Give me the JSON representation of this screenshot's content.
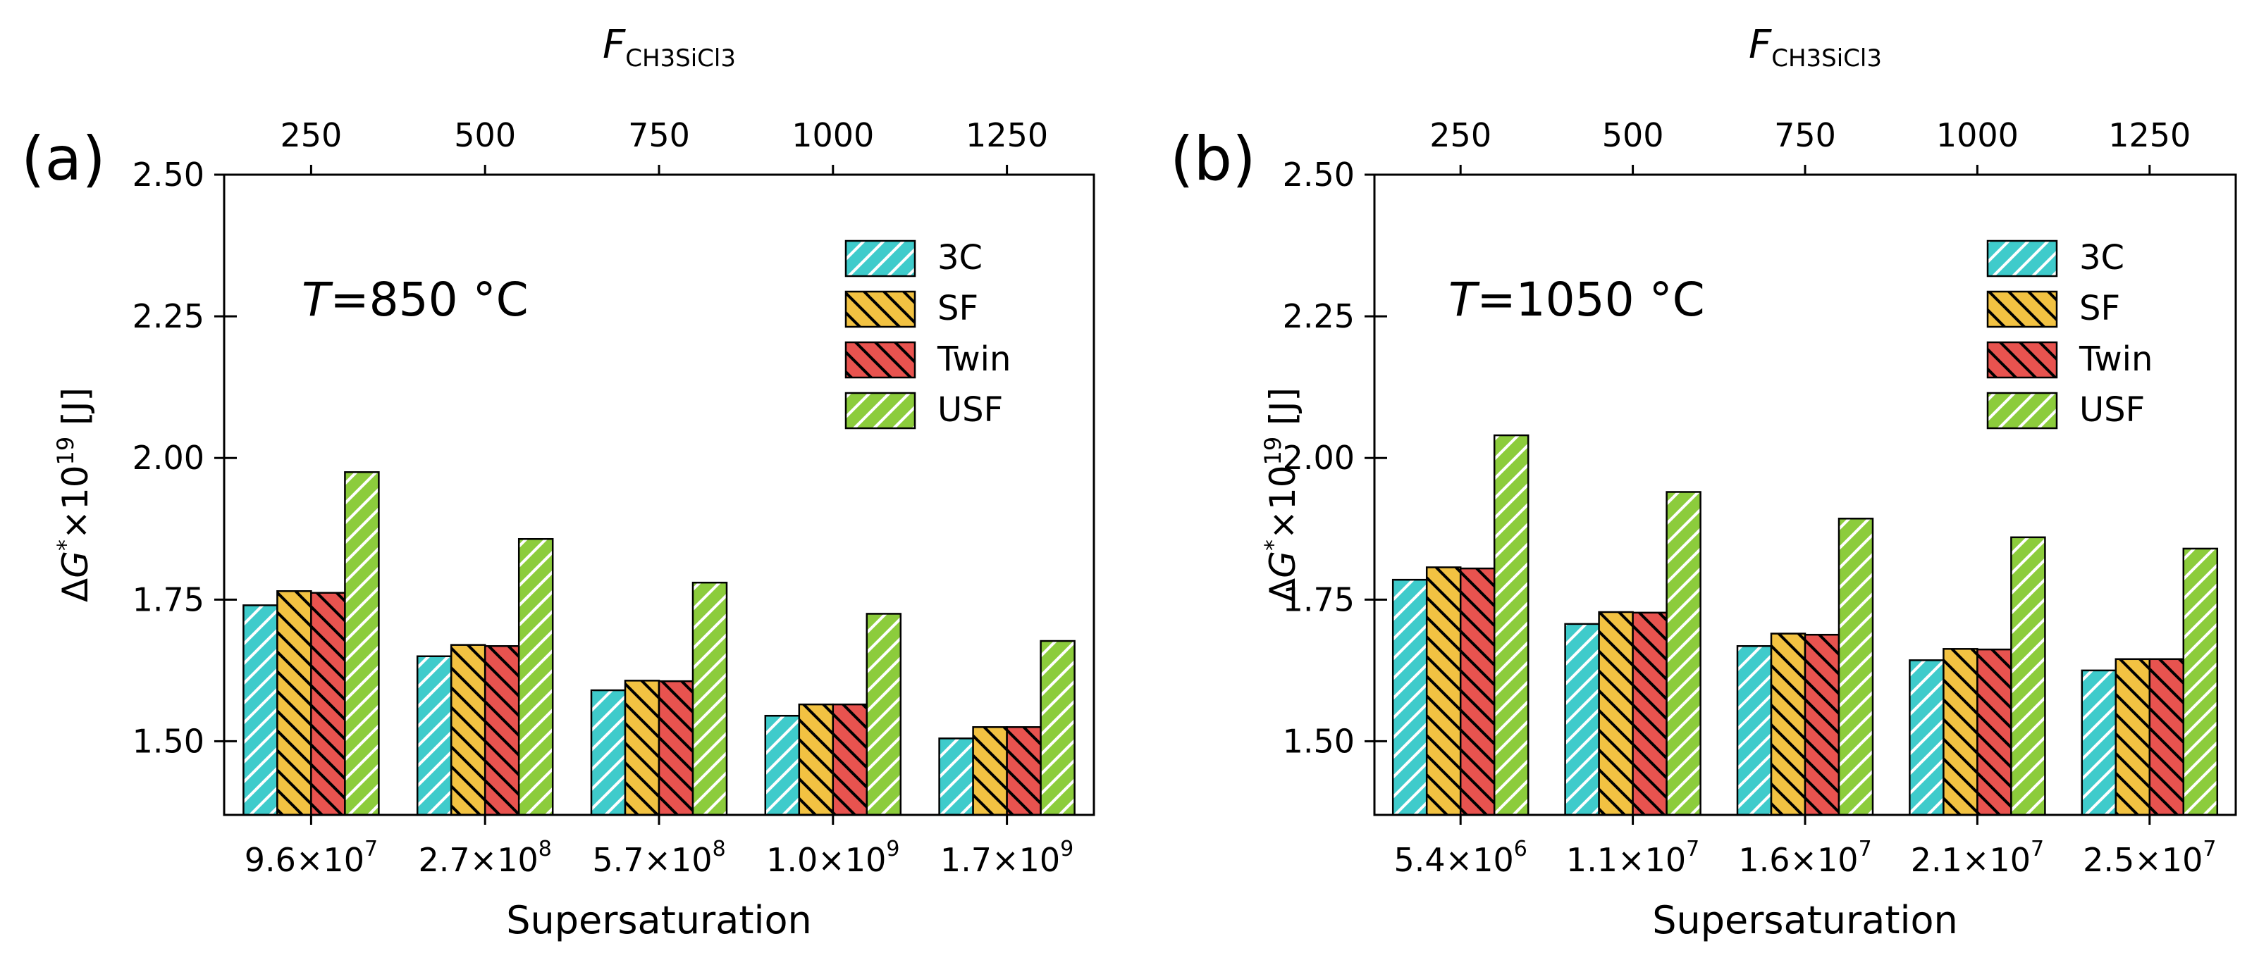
{
  "chart_data": [
    {
      "type": "bar",
      "panel_label": "(a)",
      "annotation": {
        "T_symbol": "T",
        "T_value": "=850 °C"
      },
      "top_axis": {
        "label_symbol": "F",
        "label_subscript": "CH3SiCl3",
        "ticks": [
          "250",
          "500",
          "750",
          "1000",
          "1250"
        ]
      },
      "categories": [
        {
          "mantissa": "9.6×10",
          "exponent": "7"
        },
        {
          "mantissa": "2.7×10",
          "exponent": "8"
        },
        {
          "mantissa": "5.7×10",
          "exponent": "8"
        },
        {
          "mantissa": "1.0×10",
          "exponent": "9"
        },
        {
          "mantissa": "1.7×10",
          "exponent": "9"
        }
      ],
      "xlabel": "Supersaturation",
      "ylabel": {
        "delta": "Δ",
        "symbol": "G",
        "sup_star": "*",
        "times": "×10",
        "sup_exp": "19",
        "unit": " [J]"
      },
      "ylim": [
        1.37,
        2.5
      ],
      "yticks": [
        "1.50",
        "1.75",
        "2.00",
        "2.25",
        "2.50"
      ],
      "series": [
        {
          "name": "3C",
          "values": [
            1.74,
            1.65,
            1.59,
            1.545,
            1.505
          ]
        },
        {
          "name": "SF",
          "values": [
            1.765,
            1.67,
            1.607,
            1.565,
            1.525
          ]
        },
        {
          "name": "Twin",
          "values": [
            1.762,
            1.668,
            1.606,
            1.565,
            1.525
          ]
        },
        {
          "name": "USF",
          "values": [
            1.975,
            1.857,
            1.78,
            1.725,
            1.677
          ]
        }
      ],
      "legend_position": "top-right",
      "grid": false
    },
    {
      "type": "bar",
      "panel_label": "(b)",
      "annotation": {
        "T_symbol": "T",
        "T_value": "=1050 °C"
      },
      "top_axis": {
        "label_symbol": "F",
        "label_subscript": "CH3SiCl3",
        "ticks": [
          "250",
          "500",
          "750",
          "1000",
          "1250"
        ]
      },
      "categories": [
        {
          "mantissa": "5.4×10",
          "exponent": "6"
        },
        {
          "mantissa": "1.1×10",
          "exponent": "7"
        },
        {
          "mantissa": "1.6×10",
          "exponent": "7"
        },
        {
          "mantissa": "2.1×10",
          "exponent": "7"
        },
        {
          "mantissa": "2.5×10",
          "exponent": "7"
        }
      ],
      "xlabel": "Supersaturation",
      "ylabel": {
        "delta": "Δ",
        "symbol": "G",
        "sup_star": "*",
        "times": "×10",
        "sup_exp": "19",
        "unit": " [J]"
      },
      "ylim": [
        1.37,
        2.5
      ],
      "yticks": [
        "1.50",
        "1.75",
        "2.00",
        "2.25",
        "2.50"
      ],
      "series": [
        {
          "name": "3C",
          "values": [
            1.785,
            1.707,
            1.668,
            1.643,
            1.625
          ]
        },
        {
          "name": "SF",
          "values": [
            1.807,
            1.728,
            1.69,
            1.663,
            1.645
          ]
        },
        {
          "name": "Twin",
          "values": [
            1.805,
            1.727,
            1.688,
            1.662,
            1.645
          ]
        },
        {
          "name": "USF",
          "values": [
            2.04,
            1.94,
            1.893,
            1.86,
            1.84
          ]
        }
      ],
      "legend_position": "top-right",
      "grid": false
    }
  ],
  "style": {
    "series_fill": [
      "#3fcbcb",
      "#f2c242",
      "#e8534f",
      "#8ccc3c"
    ],
    "hatch_direction": [
      "forward",
      "backward",
      "backward",
      "forward"
    ],
    "hatch_stroke": [
      "#ffffff",
      "#000000",
      "#000000",
      "#ffffff"
    ]
  }
}
